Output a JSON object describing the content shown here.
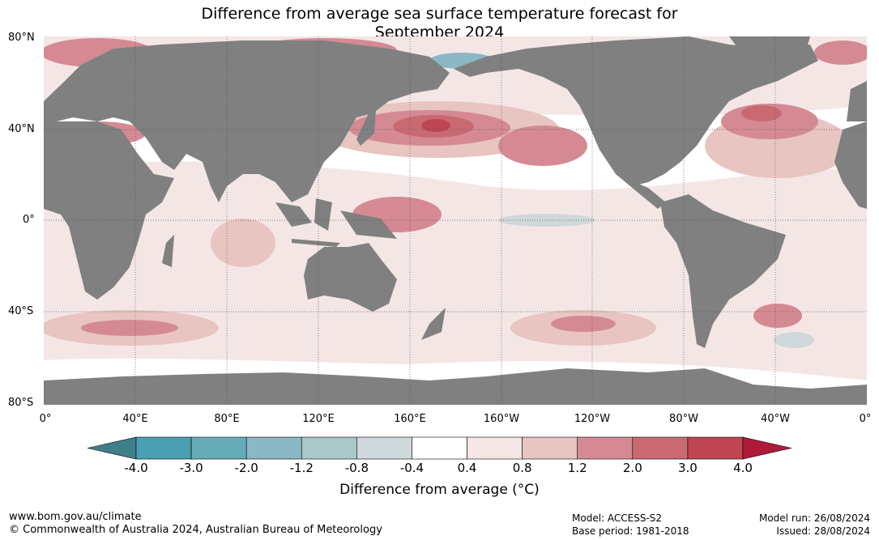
{
  "title_line1": "Difference from average sea surface temperature forecast for",
  "title_line2": "September 2024",
  "lat_labels": [
    "80°N",
    "40°N",
    "0°",
    "40°S",
    "80°S"
  ],
  "lon_labels": [
    "0°",
    "40°E",
    "80°E",
    "120°E",
    "160°E",
    "160°W",
    "120°W",
    "80°W",
    "40°W",
    "0°"
  ],
  "colorbar": {
    "ticks": [
      "-4.0",
      "-3.0",
      "-2.0",
      "-1.2",
      "-0.8",
      "-0.4",
      "0.4",
      "0.8",
      "1.2",
      "2.0",
      "3.0",
      "4.0"
    ],
    "colors": [
      "#4aa0b2",
      "#68abb8",
      "#8ab8c4",
      "#aac7c9",
      "#cfd8da",
      "#ffffff",
      "#f5e6e6",
      "#e8c5c1",
      "#d58a93",
      "#c96a73",
      "#bf4553"
    ],
    "low_extend_color": "#3f7f8a",
    "high_extend_color": "#ae1b38",
    "label": "Difference from average (°C)"
  },
  "footer": {
    "url": "www.bom.gov.au/climate",
    "copyright": "© Commonwealth of Australia 2024, Australian Bureau of Meteorology",
    "model": "Model: ACCESS-S2",
    "base_period": "Base period: 1981-2018",
    "model_run": "Model run: 26/08/2024",
    "issued": "Issued: 28/08/2024"
  }
}
